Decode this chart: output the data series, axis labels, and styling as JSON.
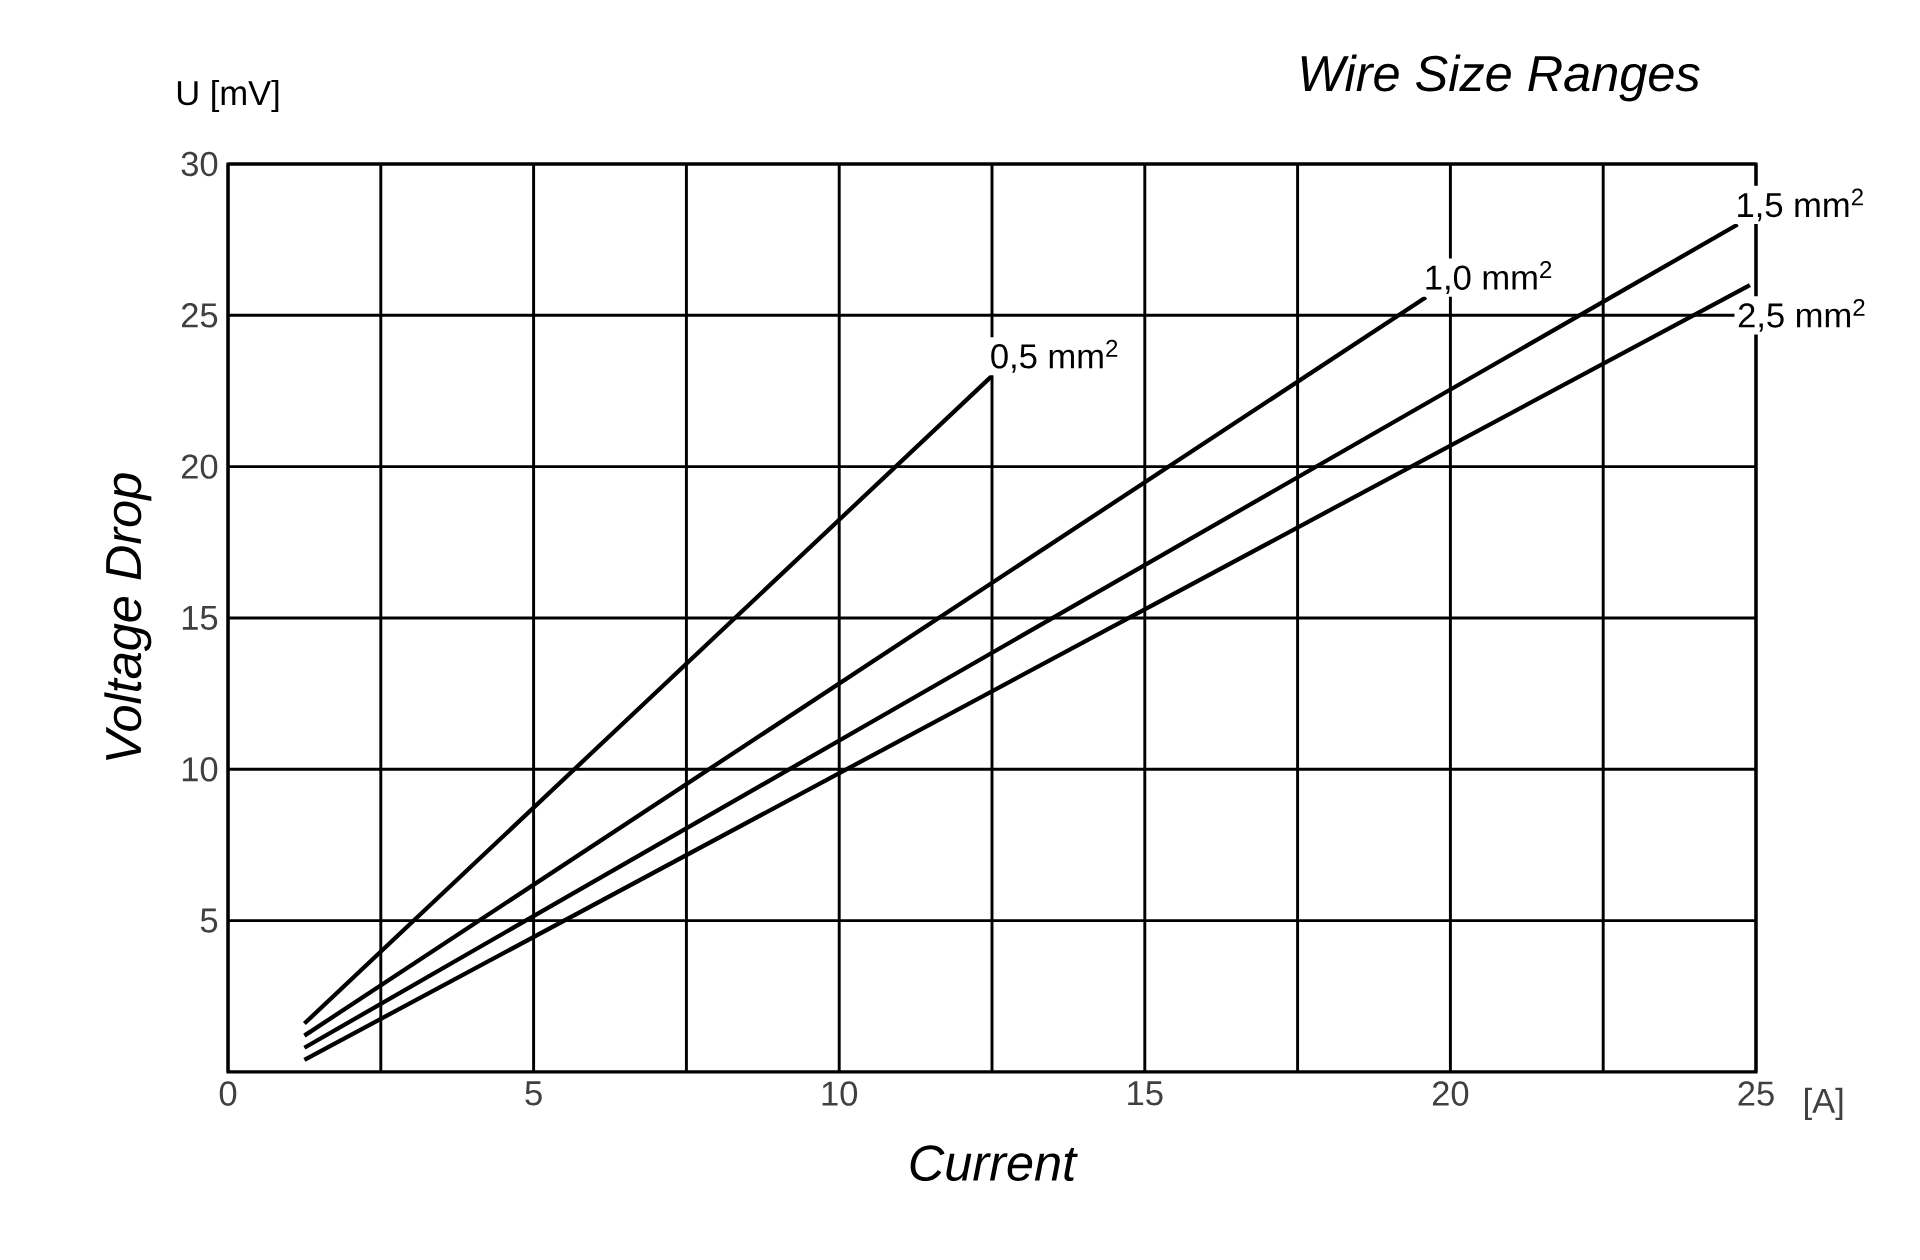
{
  "chart_data": {
    "type": "line",
    "title": "Wire Size Ranges",
    "xlabel": "Current",
    "ylabel": "Voltage Drop",
    "annotations": [
      "U [mV]",
      "[A]"
    ],
    "xlim": [
      0,
      25
    ],
    "ylim": [
      0,
      30
    ],
    "xticks": [
      0,
      {
        "value": 2.5,
        "label": null
      },
      5,
      {
        "value": 7.5,
        "label": null
      },
      10,
      {
        "value": 12.5,
        "label": null
      },
      15,
      {
        "value": 17.5,
        "label": null
      },
      20,
      {
        "value": 22.5,
        "label": null
      },
      25
    ],
    "yticks": [
      5,
      10,
      15,
      20,
      25,
      30
    ],
    "grid": true,
    "legend": false,
    "marker": "none",
    "line_style": "solid",
    "series": [
      {
        "name": "0,5 mm$^{2}$",
        "color": "#000000",
        "x": [
          1.25,
          12.5
        ],
        "values": [
          1.6,
          23
        ]
      },
      {
        "name": "1,0 mm$^{2}$",
        "color": "#000000",
        "x": [
          1.25,
          19.6
        ],
        "values": [
          1.2,
          25.6
        ]
      },
      {
        "name": "1,5 mm$^{2}$",
        "color": "#000000",
        "x": [
          1.25,
          24.7
        ],
        "values": [
          0.8,
          28
        ]
      },
      {
        "name": "2,5 mm$^{2}$",
        "color": "#000000",
        "x": [
          1.25,
          24.9
        ],
        "values": [
          0.4,
          26
        ]
      }
    ]
  }
}
